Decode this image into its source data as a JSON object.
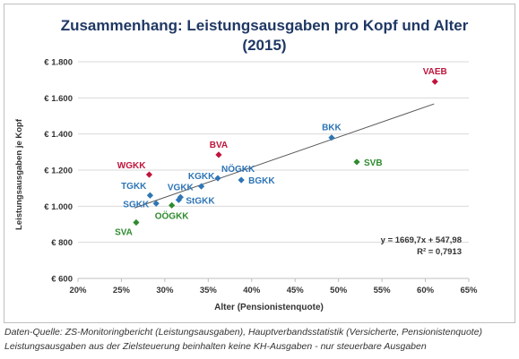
{
  "chart_data": {
    "type": "scatter",
    "title_line1": "Zusammenhang: Leistungsausgaben pro Kopf und Alter",
    "title_line2": "(2015)",
    "xlabel": "Alter (Pensionistenquote)",
    "ylabel": "Leistungsausgaben je Kopf",
    "xlim": [
      0.2,
      0.65
    ],
    "ylim": [
      600,
      1800
    ],
    "x_ticks": [
      "20%",
      "25%",
      "30%",
      "35%",
      "40%",
      "45%",
      "50%",
      "55%",
      "60%",
      "65%"
    ],
    "y_ticks": [
      "€ 600",
      "€ 800",
      "€ 1.000",
      "€ 1.200",
      "€ 1.400",
      "€ 1.600",
      "€ 1.800"
    ],
    "grid": "horizontal",
    "trendline": {
      "slope": 1669.7,
      "intercept": 547.98,
      "x_range": [
        0.265,
        0.61
      ]
    },
    "equation_line1": "y = 1669,7x + 547,98",
    "equation_line2": "R² = 0,7913",
    "colors": {
      "blue": "#2e75b6",
      "red": "#c0143c",
      "green": "#2e8b2e",
      "trend": "#555555",
      "grid": "#d9d9d9"
    },
    "points": [
      {
        "label": "VAEB",
        "x": 0.611,
        "y": 1690,
        "color": "red",
        "label_pos": "above"
      },
      {
        "label": "BKK",
        "x": 0.492,
        "y": 1380,
        "color": "blue",
        "label_pos": "above"
      },
      {
        "label": "SVB",
        "x": 0.521,
        "y": 1245,
        "color": "green",
        "label_pos": "right"
      },
      {
        "label": "BVA",
        "x": 0.362,
        "y": 1285,
        "color": "red",
        "label_pos": "above"
      },
      {
        "label": "WGKK",
        "x": 0.282,
        "y": 1175,
        "color": "red",
        "label_pos": "above-left"
      },
      {
        "label": "NÖGKK",
        "x": 0.361,
        "y": 1155,
        "color": "blue",
        "label_pos": "above-right"
      },
      {
        "label": "BGKK",
        "x": 0.388,
        "y": 1145,
        "color": "blue",
        "label_pos": "right"
      },
      {
        "label": "KGKK",
        "x": 0.342,
        "y": 1110,
        "color": "blue",
        "label_pos": "above"
      },
      {
        "label": "VGKK",
        "x": 0.318,
        "y": 1050,
        "color": "blue",
        "label_pos": "above"
      },
      {
        "label": "StGKK",
        "x": 0.316,
        "y": 1035,
        "color": "blue",
        "label_pos": "right"
      },
      {
        "label": "TGKK",
        "x": 0.283,
        "y": 1060,
        "color": "blue",
        "label_pos": "above-left"
      },
      {
        "label": "SGKK",
        "x": 0.29,
        "y": 1015,
        "color": "blue",
        "label_pos": "left"
      },
      {
        "label": "OÖGKK",
        "x": 0.308,
        "y": 1005,
        "color": "green",
        "label_pos": "below"
      },
      {
        "label": "SVA",
        "x": 0.267,
        "y": 910,
        "color": "green",
        "label_pos": "below-left"
      }
    ]
  },
  "source_note_line1": "Daten-Quelle: ZS-Monitoringbericht (Leistungsausgaben), Hauptverbandsstatistik (Versicherte, Pensionistenquote)",
  "source_note_line2": "Leistungsausgaben aus der Zielsteuerung beinhalten keine KH-Ausgaben - nur steuerbare Ausgaben"
}
